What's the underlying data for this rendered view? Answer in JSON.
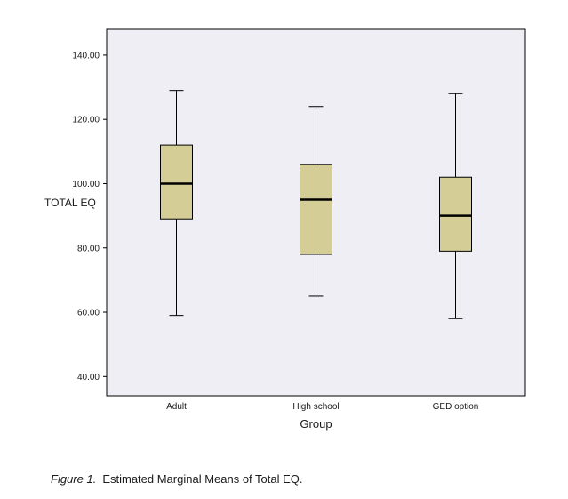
{
  "figure": {
    "caption_label": "Figure 1.",
    "caption_text": "Estimated Marginal Means of Total EQ."
  },
  "chart_data": {
    "type": "boxplot",
    "title": "",
    "xlabel": "Group",
    "ylabel": "TOTAL EQ",
    "ylim": [
      34,
      148
    ],
    "ytick_values": [
      40,
      60,
      80,
      100,
      120,
      140
    ],
    "ytick_labels": [
      "40.00",
      "60.00",
      "80.00",
      "100.00",
      "120.00",
      "140.00"
    ],
    "categories": [
      "Adult",
      "High school",
      "GED option"
    ],
    "series": [
      {
        "name": "Adult",
        "min": 59,
        "q1": 89,
        "median": 100,
        "q3": 112,
        "max": 129
      },
      {
        "name": "High school",
        "min": 65,
        "q1": 78,
        "median": 95,
        "q3": 106,
        "max": 124
      },
      {
        "name": "GED option",
        "min": 58,
        "q1": 79,
        "median": 90,
        "q3": 102,
        "max": 128
      }
    ],
    "legend": "none",
    "grid": false,
    "colors": {
      "box_fill": "#d5cd96",
      "box_stroke": "#000000",
      "median_stroke": "#000000",
      "whisker_stroke": "#000000",
      "plot_bg": "#efeef4",
      "plot_border": "#000000",
      "page_bg": "#ffffff",
      "text": "#1a1a1a"
    }
  }
}
